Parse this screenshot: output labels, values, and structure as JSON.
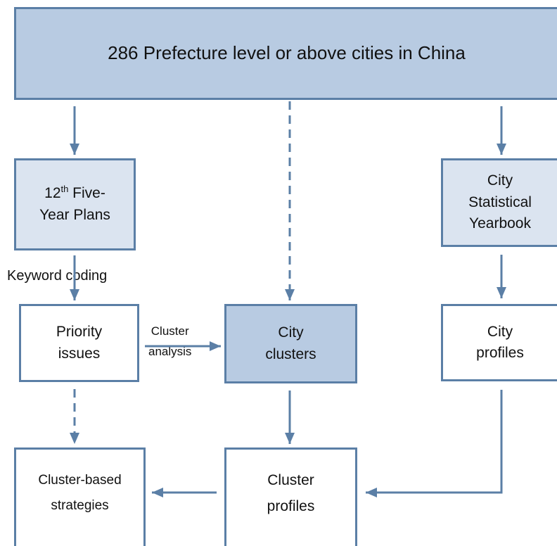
{
  "diagram": {
    "top_box": {
      "text": "286 Prefecture level or above cities in China"
    },
    "plans_box": {
      "line1_prefix": "12",
      "line1_sup": "th",
      "line1_suffix": " Five-",
      "line2": "Year Plans"
    },
    "yearbook_box": {
      "line1": "City",
      "line2": "Statistical",
      "line3": "Yearbook"
    },
    "priority_box": {
      "line1": "Priority",
      "line2": "issues"
    },
    "clusters_box": {
      "line1": "City",
      "line2": "clusters"
    },
    "city_profiles_box": {
      "line1": "City",
      "line2": "profiles"
    },
    "strategies_box": {
      "line1": "Cluster-based",
      "line2": "strategies"
    },
    "cluster_profiles_box": {
      "line1": "Cluster",
      "line2": "profiles"
    },
    "labels": {
      "keyword_coding": "Keyword coding",
      "cluster_analysis_line1": "Cluster",
      "cluster_analysis_line2": "analysis"
    },
    "colors": {
      "border": "#5b7fa6",
      "arrow": "#5b7fa6",
      "fill_dark": "#b8cbe2",
      "fill_light": "#dbe4f0"
    }
  }
}
